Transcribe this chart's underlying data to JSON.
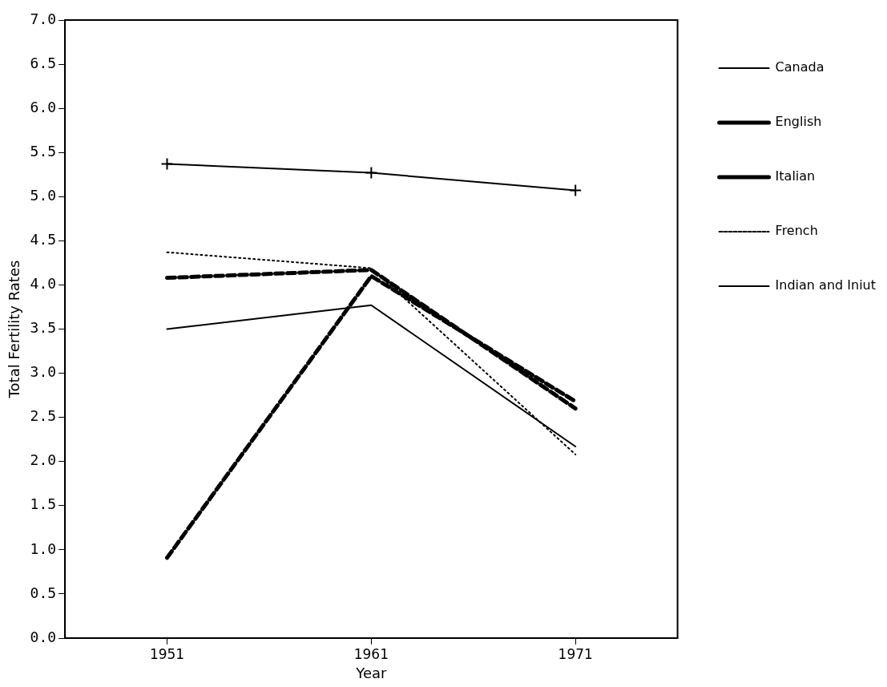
{
  "chart_data": {
    "type": "line",
    "xlabel": "Year",
    "ylabel": "Total Fertility Rates",
    "x": [
      1951,
      1961,
      1971
    ],
    "xlim": [
      1946,
      1976
    ],
    "xticks": [
      1951,
      1961,
      1971
    ],
    "ylim": [
      0,
      7
    ],
    "yticks": [
      {
        "value": 0,
        "label": "0.0"
      },
      {
        "value": 0.5,
        "label": "0.5"
      },
      {
        "value": 1,
        "label": "1.0"
      },
      {
        "value": 1.5,
        "label": "1.5"
      },
      {
        "value": 2,
        "label": "2.0"
      },
      {
        "value": 2.5,
        "label": "2.5"
      },
      {
        "value": 3,
        "label": "3.0"
      },
      {
        "value": 3.5,
        "label": "3.5"
      },
      {
        "value": 4,
        "label": "4.0"
      },
      {
        "value": 4.5,
        "label": "4.5"
      },
      {
        "value": 5,
        "label": "5.0"
      },
      {
        "value": 5.5,
        "label": "5.5"
      },
      {
        "value": 6,
        "label": "6.0"
      },
      {
        "value": 6.5,
        "label": "6.5"
      },
      {
        "value": 7,
        "label": "7.0"
      }
    ],
    "grid": false,
    "legend": "right",
    "series": [
      {
        "name": "Canada",
        "color": "#000000",
        "line_style": "solid",
        "values": [
          3.5,
          3.77,
          2.17
        ]
      },
      {
        "name": "English",
        "color": "#000000",
        "line_style": "dashed",
        "values": [
          4.08,
          4.17,
          2.6
        ]
      },
      {
        "name": "Italian",
        "color": "#000000",
        "line_style": "dashed",
        "values": [
          0.91,
          4.1,
          2.68
        ]
      },
      {
        "name": "French",
        "color": "#000000",
        "line_style": "dotted",
        "values": [
          4.37,
          4.19,
          2.08
        ]
      },
      {
        "name": "Indian and Iniut",
        "color": "#000000",
        "line_style": "solid",
        "marker": "cross",
        "values": [
          5.37,
          5.27,
          5.07
        ]
      }
    ]
  }
}
